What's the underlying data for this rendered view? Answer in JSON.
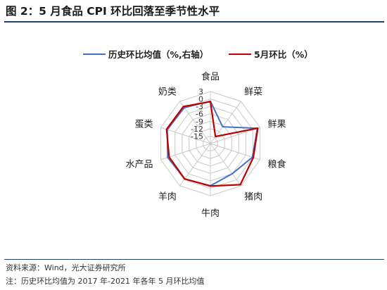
{
  "header": {
    "title": "图 2：5 月食品 CPI 环比回落至季节性水平"
  },
  "footer": {
    "source": "资料来源：Wind，光大证券研究所",
    "note": "注：历史环比均值为 2017 年-2021 年各年 5 月环比均值"
  },
  "colors": {
    "historical": "#4472c4",
    "may": "#c00000",
    "grid": "#c8c8c8",
    "rule": "#1e3f73"
  },
  "chart_data": {
    "type": "radar",
    "title": "",
    "categories": [
      "食品",
      "鲜菜",
      "鲜果",
      "粮食",
      "猪肉",
      "牛肉",
      "羊肉",
      "水产品",
      "蛋类",
      "奶类"
    ],
    "r_ticks": [
      "3",
      "0",
      "-3",
      "-6",
      "-9",
      "-12",
      "-15"
    ],
    "r_tick_values": [
      3,
      0,
      -3,
      -6,
      -9,
      -12,
      -15
    ],
    "rlim": [
      -18,
      3
    ],
    "legend_position": "top",
    "series": [
      {
        "name": "历史环比均值（%,右轴）",
        "values": [
          -0.9,
          -9.6,
          1.9,
          -0.2,
          -3.0,
          -1.0,
          -0.4,
          0.1,
          0.3,
          -0.1
        ]
      },
      {
        "name": "5月环比（%）",
        "values": [
          -1.1,
          -14.5,
          2.1,
          0.2,
          2.5,
          -0.9,
          -0.4,
          -0.5,
          0.6,
          0.5
        ]
      }
    ]
  }
}
